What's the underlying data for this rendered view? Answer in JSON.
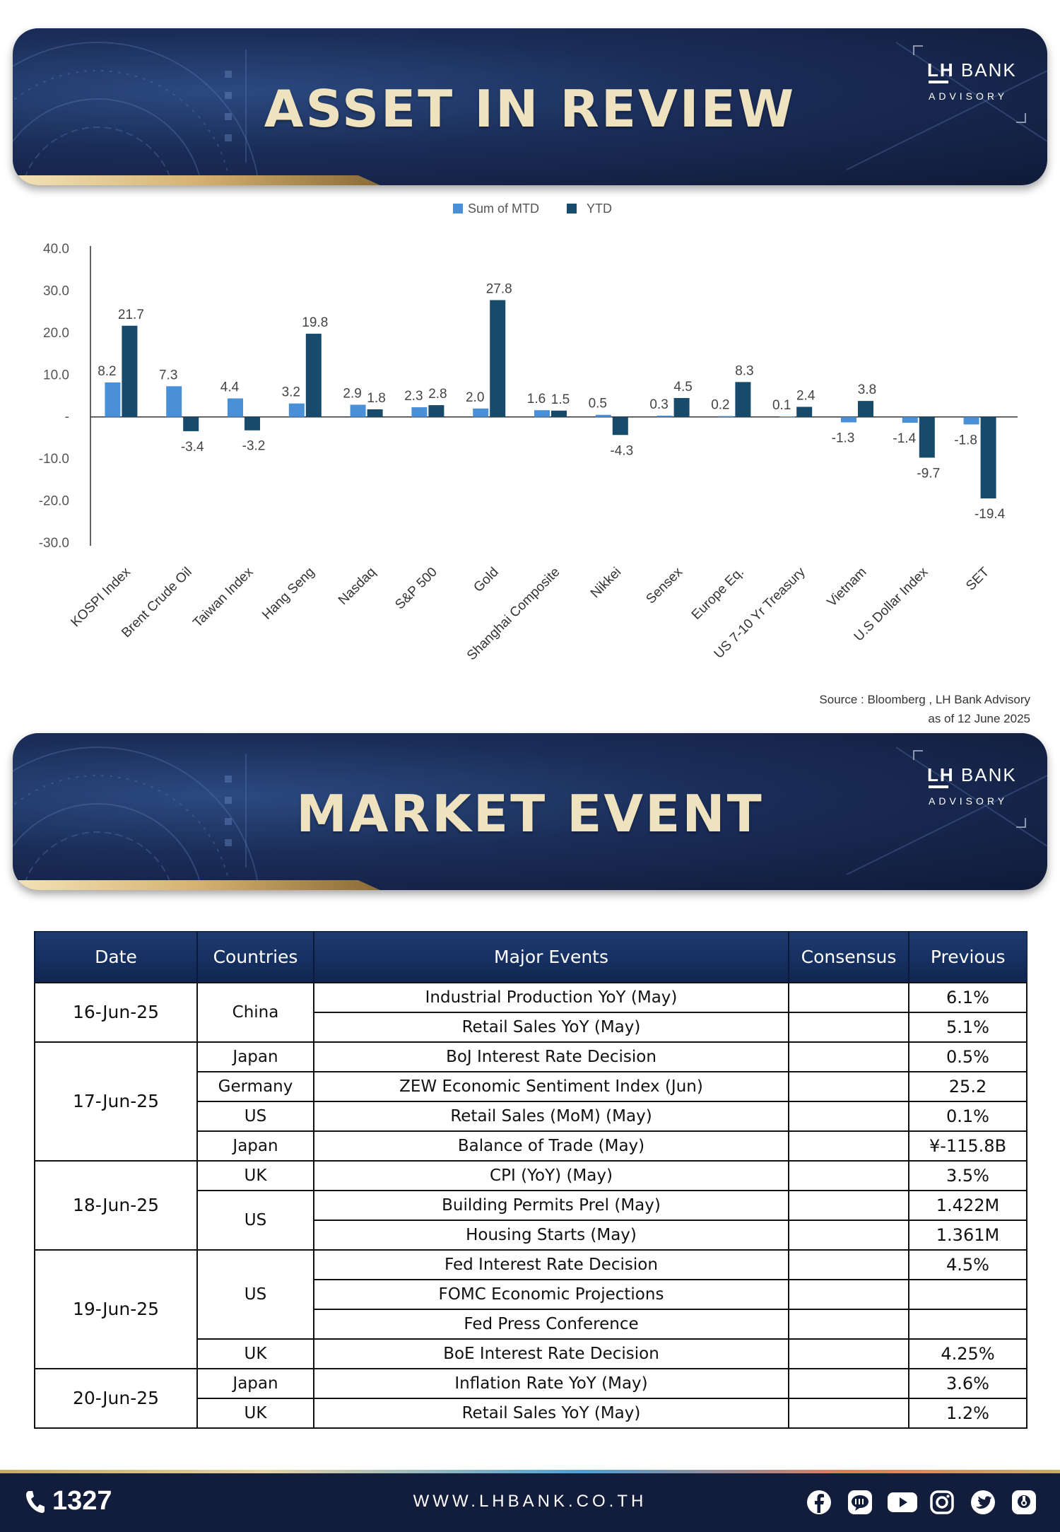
{
  "banner1": {
    "title": "ASSET IN REVIEW",
    "logo_lh": "LH",
    "logo_bank": "BANK",
    "logo_advisory": "ADVISORY"
  },
  "banner2": {
    "title": "MARKET EVENT",
    "logo_lh": "LH",
    "logo_bank": "BANK",
    "logo_advisory": "ADVISORY"
  },
  "chart_data": {
    "type": "bar",
    "categories": [
      "KOSPI Index",
      "Brent Crude Oil",
      "Taiwan Index",
      "Hang Seng",
      "Nasdaq",
      "S&P 500",
      "Gold",
      "Shanghai Composite",
      "Nikkei",
      "Sensex",
      "Europe Eq.",
      "US 7-10 Yr Treasury",
      "Vietnam",
      "U.S Dollar Index",
      "SET"
    ],
    "series": [
      {
        "name": "Sum of MTD",
        "color": "#4a90d9",
        "values": [
          8.2,
          7.3,
          4.4,
          3.2,
          2.9,
          2.3,
          2.0,
          1.6,
          0.5,
          0.3,
          0.2,
          0.1,
          -1.3,
          -1.4,
          -1.8
        ]
      },
      {
        "name": "YTD",
        "color": "#174a6b",
        "values": [
          21.7,
          -3.4,
          -3.2,
          19.8,
          1.8,
          2.8,
          27.8,
          1.5,
          -4.3,
          4.5,
          8.3,
          2.4,
          3.8,
          -9.7,
          -19.4
        ]
      }
    ],
    "labels": {
      "mtd": [
        "8.2",
        "7.3",
        "4.4",
        "3.2",
        "2.9",
        "2.3",
        "2.0",
        "1.6",
        "0.5",
        "0.3",
        "0.2",
        "0.1",
        "-1.3",
        "-1.4",
        "-1.8"
      ],
      "ytd": [
        "21.7",
        "-3.4",
        "-3.2",
        "19.8",
        "1.8",
        "2.8",
        "27.8",
        "1.5",
        "-4.3",
        "4.5",
        "8.3",
        "2.4",
        "3.8",
        "-9.7",
        "-19.4"
      ]
    },
    "ylim": [
      -30,
      40
    ],
    "yticks": [
      40,
      30,
      20,
      10,
      0,
      -10,
      -20,
      -30
    ],
    "ytick_labels": [
      "40.0",
      "30.0",
      "20.0",
      "10.0",
      "-",
      "-10.0",
      "-20.0",
      "-30.0"
    ],
    "legend_position": "top-center",
    "grid": false
  },
  "source": {
    "line1": "Source : Bloomberg , LH Bank Advisory",
    "line2": "as of 12 June 2025"
  },
  "table": {
    "headers": [
      "Date",
      "Countries",
      "Major Events",
      "Consensus",
      "Previous"
    ],
    "rows": [
      {
        "date": "16-Jun-25",
        "country": "China",
        "event": "Industrial Production YoY (May)",
        "consensus": "",
        "previous": "6.1%"
      },
      {
        "event": "Retail Sales YoY (May)",
        "consensus": "",
        "previous": "5.1%"
      },
      {
        "date": "17-Jun-25",
        "country": "Japan",
        "event": "BoJ Interest Rate Decision",
        "consensus": "",
        "previous": "0.5%"
      },
      {
        "country": "Germany",
        "event": "ZEW Economic Sentiment Index (Jun)",
        "consensus": "",
        "previous": "25.2"
      },
      {
        "country": "US",
        "event": "Retail Sales (MoM) (May)",
        "consensus": "",
        "previous": "0.1%"
      },
      {
        "country": "Japan",
        "event": "Balance of Trade (May)",
        "consensus": "",
        "previous": "¥-115.8B"
      },
      {
        "date": "18-Jun-25",
        "country": "UK",
        "event": "CPI (YoY) (May)",
        "consensus": "",
        "previous": "3.5%"
      },
      {
        "country": "US",
        "event": "Building Permits Prel (May)",
        "consensus": "",
        "previous": "1.422M"
      },
      {
        "event": "Housing Starts (May)",
        "consensus": "",
        "previous": "1.361M"
      },
      {
        "date": "19-Jun-25",
        "country": "US",
        "event": "Fed Interest Rate Decision",
        "consensus": "",
        "previous": "4.5%"
      },
      {
        "event": "FOMC Economic Projections",
        "consensus": "",
        "previous": ""
      },
      {
        "event": "Fed Press Conference",
        "consensus": "",
        "previous": ""
      },
      {
        "country": "UK",
        "event": "BoE Interest Rate Decision",
        "consensus": "",
        "previous": "4.25%"
      },
      {
        "date": "20-Jun-25",
        "country": "Japan",
        "event": "Inflation Rate YoY (May)",
        "consensus": "",
        "previous": "3.6%"
      },
      {
        "country": "UK",
        "event": "Retail Sales YoY (May)",
        "consensus": "",
        "previous": "1.2%"
      }
    ]
  },
  "footer": {
    "phone": "1327",
    "url": "WWW.LHBANK.CO.TH",
    "social_icons": [
      "phone-icon",
      "facebook-icon",
      "line-icon",
      "youtube-icon",
      "instagram-icon",
      "twitter-icon",
      "blockdit-icon"
    ]
  }
}
